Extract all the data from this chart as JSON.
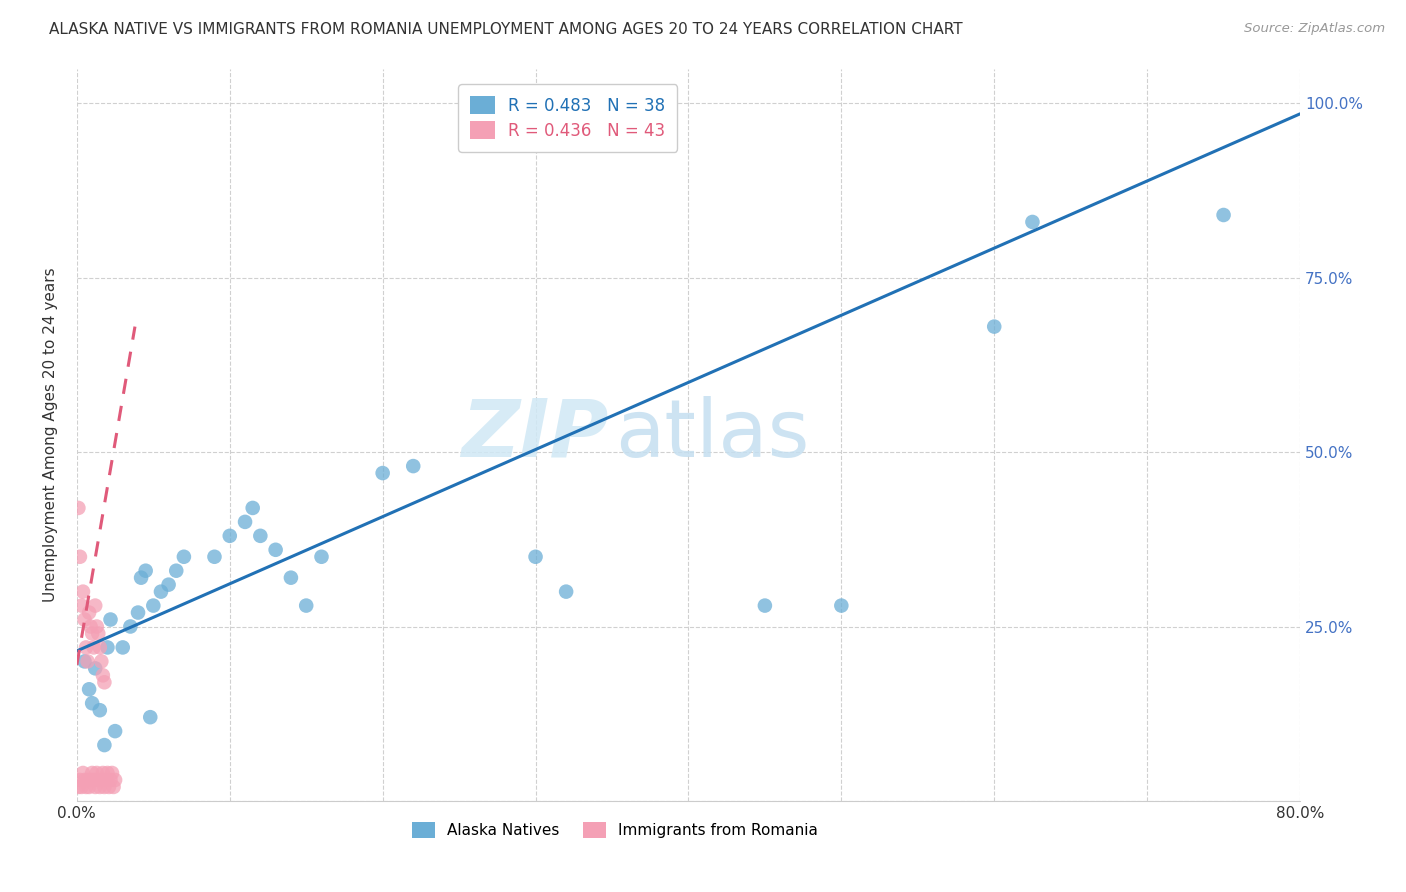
{
  "title": "ALASKA NATIVE VS IMMIGRANTS FROM ROMANIA UNEMPLOYMENT AMONG AGES 20 TO 24 YEARS CORRELATION CHART",
  "source": "Source: ZipAtlas.com",
  "ylabel": "Unemployment Among Ages 20 to 24 years",
  "xlim": [
    0.0,
    0.8
  ],
  "ylim": [
    0.0,
    1.05
  ],
  "xticks": [
    0.0,
    0.1,
    0.2,
    0.3,
    0.4,
    0.5,
    0.6,
    0.7,
    0.8
  ],
  "xticklabels": [
    "0.0%",
    "",
    "",
    "",
    "",
    "",
    "",
    "",
    "80.0%"
  ],
  "yticks": [
    0.0,
    0.25,
    0.5,
    0.75,
    1.0
  ],
  "yticklabels": [
    "",
    "25.0%",
    "50.0%",
    "75.0%",
    "100.0%"
  ],
  "legend_r1": "R = 0.483",
  "legend_n1": "N = 38",
  "legend_r2": "R = 0.436",
  "legend_n2": "N = 43",
  "blue_color": "#6baed6",
  "pink_color": "#f4a0b5",
  "trend_blue": "#2171b5",
  "trend_pink": "#e05a7a",
  "watermark_zip": "ZIP",
  "watermark_atlas": "atlas",
  "blue_scatter_x": [
    0.005,
    0.008,
    0.01,
    0.012,
    0.015,
    0.018,
    0.02,
    0.022,
    0.025,
    0.03,
    0.035,
    0.04,
    0.042,
    0.045,
    0.048,
    0.05,
    0.055,
    0.06,
    0.065,
    0.07,
    0.09,
    0.1,
    0.11,
    0.115,
    0.12,
    0.13,
    0.14,
    0.15,
    0.16,
    0.2,
    0.22,
    0.3,
    0.32,
    0.45,
    0.5,
    0.6,
    0.625,
    0.75
  ],
  "blue_scatter_y": [
    0.2,
    0.16,
    0.14,
    0.19,
    0.13,
    0.08,
    0.22,
    0.26,
    0.1,
    0.22,
    0.25,
    0.27,
    0.32,
    0.33,
    0.12,
    0.28,
    0.3,
    0.31,
    0.33,
    0.35,
    0.35,
    0.38,
    0.4,
    0.42,
    0.38,
    0.36,
    0.32,
    0.28,
    0.35,
    0.47,
    0.48,
    0.35,
    0.3,
    0.28,
    0.28,
    0.68,
    0.83,
    0.84
  ],
  "pink_scatter_x": [
    0.001,
    0.002,
    0.003,
    0.004,
    0.005,
    0.006,
    0.007,
    0.008,
    0.009,
    0.01,
    0.011,
    0.012,
    0.013,
    0.014,
    0.015,
    0.016,
    0.017,
    0.018,
    0.019,
    0.02,
    0.021,
    0.022,
    0.023,
    0.024,
    0.025,
    0.001,
    0.002,
    0.003,
    0.004,
    0.005,
    0.006,
    0.007,
    0.008,
    0.009,
    0.01,
    0.011,
    0.012,
    0.013,
    0.014,
    0.015,
    0.016,
    0.017,
    0.018
  ],
  "pink_scatter_y": [
    0.02,
    0.03,
    0.02,
    0.04,
    0.03,
    0.02,
    0.03,
    0.02,
    0.03,
    0.04,
    0.03,
    0.02,
    0.04,
    0.03,
    0.02,
    0.03,
    0.04,
    0.02,
    0.03,
    0.04,
    0.02,
    0.03,
    0.04,
    0.02,
    0.03,
    0.42,
    0.35,
    0.28,
    0.3,
    0.26,
    0.22,
    0.2,
    0.27,
    0.25,
    0.24,
    0.22,
    0.28,
    0.25,
    0.24,
    0.22,
    0.2,
    0.18,
    0.17
  ],
  "blue_line_x": [
    0.0,
    0.8
  ],
  "blue_line_y": [
    0.215,
    0.985
  ],
  "pink_line_x": [
    0.0,
    0.038
  ],
  "pink_line_y": [
    0.195,
    0.68
  ],
  "grid_color": "#d0d0d0",
  "background_color": "#ffffff",
  "title_color": "#333333",
  "right_ytick_color": "#4472c4"
}
